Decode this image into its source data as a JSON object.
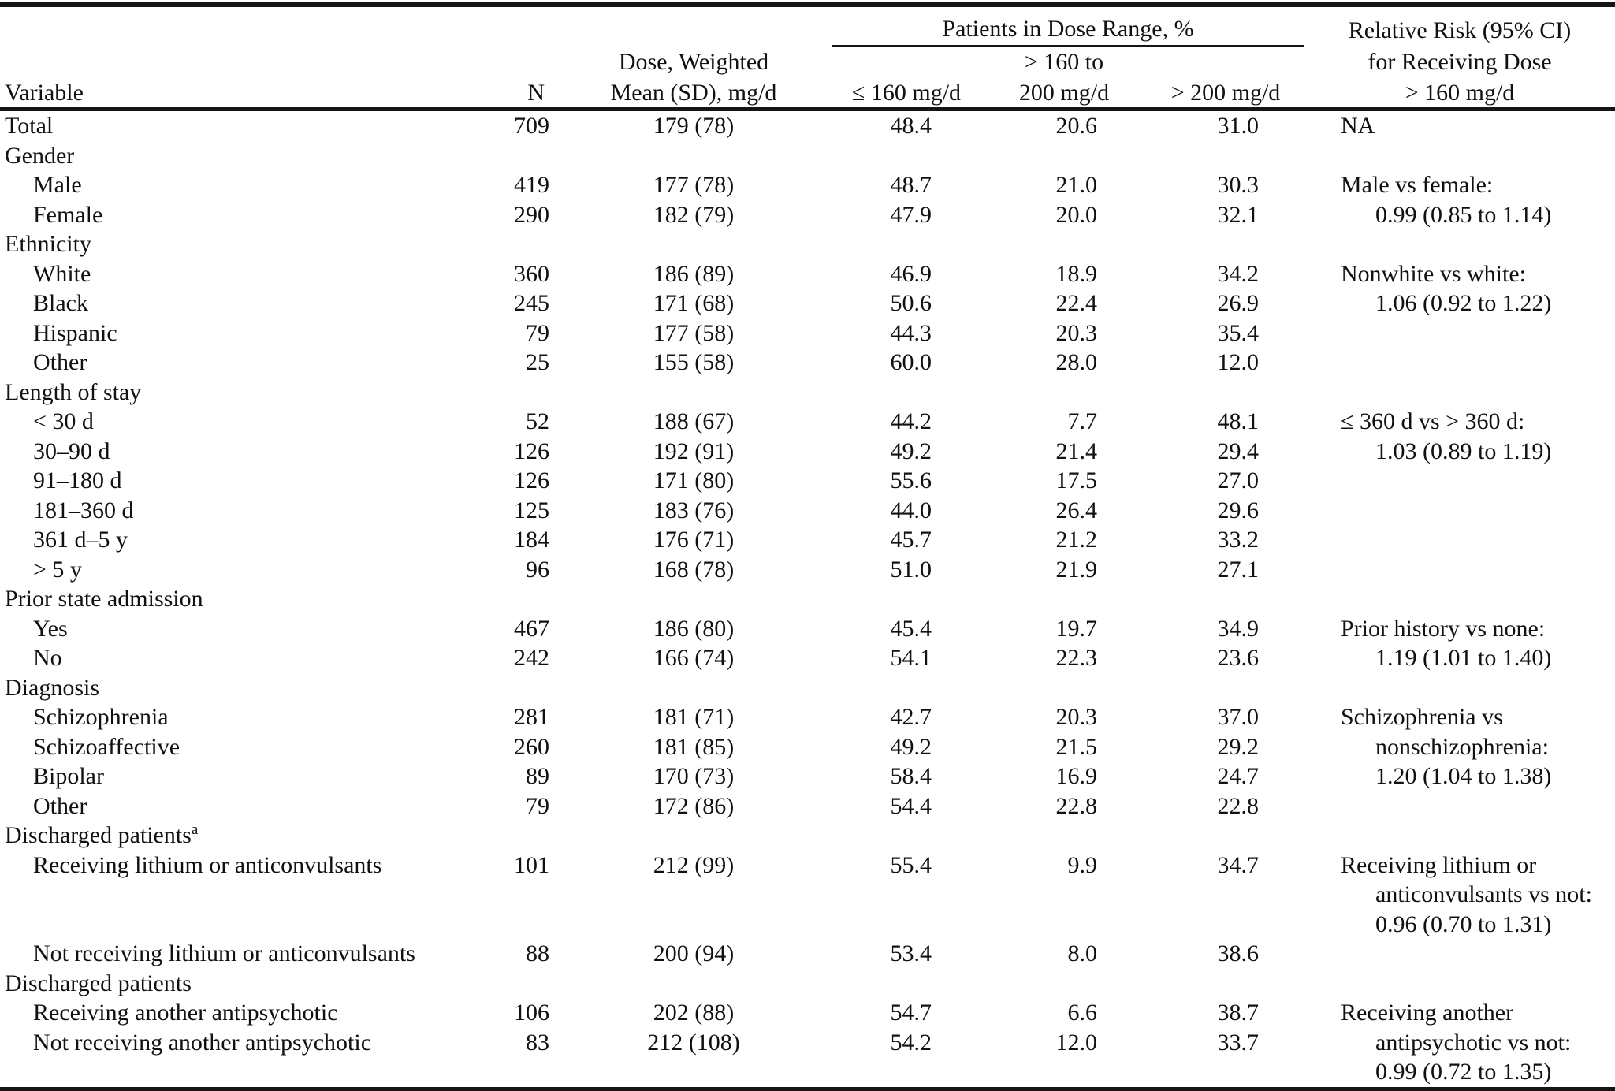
{
  "table": {
    "header": {
      "variable": "Variable",
      "n": "N",
      "dose_line1": "Dose, Weighted",
      "dose_line2": "Mean (SD), mg/d",
      "spanner": "Patients in Dose Range, %",
      "col_le160": "≤ 160 mg/d",
      "col_mid_line1": "> 160 to",
      "col_mid_line2": "200 mg/d",
      "col_gt200": "> 200 mg/d",
      "rr_line1": "Relative Risk (95% CI)",
      "rr_line2": "for Receiving Dose",
      "rr_line3": "> 160 mg/d"
    },
    "rows": [
      {
        "type": "data",
        "indent": 0,
        "label": "Total",
        "n": "709",
        "dose": "179 (78)",
        "p1": "48.4",
        "p2": "20.6",
        "p3": "31.0",
        "rr": [
          {
            "text": "NA",
            "indent": 0
          }
        ]
      },
      {
        "type": "group",
        "label": "Gender"
      },
      {
        "type": "data",
        "indent": 1,
        "label": "Male",
        "n": "419",
        "dose": "177 (78)",
        "p1": "48.7",
        "p2": "21.0",
        "p3": "30.3",
        "rr": [
          {
            "text": "Male vs female:",
            "indent": 0
          }
        ]
      },
      {
        "type": "data",
        "indent": 1,
        "label": "Female",
        "n": "290",
        "dose": "182 (79)",
        "p1": "47.9",
        "p2": "20.0",
        "p3": "32.1",
        "rr": [
          {
            "text": "0.99 (0.85 to 1.14)",
            "indent": 1
          }
        ]
      },
      {
        "type": "group",
        "label": "Ethnicity"
      },
      {
        "type": "data",
        "indent": 1,
        "label": "White",
        "n": "360",
        "dose": "186 (89)",
        "p1": "46.9",
        "p2": "18.9",
        "p3": "34.2",
        "rr": [
          {
            "text": "Nonwhite vs white:",
            "indent": 0
          }
        ]
      },
      {
        "type": "data",
        "indent": 1,
        "label": "Black",
        "n": "245",
        "dose": "171 (68)",
        "p1": "50.6",
        "p2": "22.4",
        "p3": "26.9",
        "rr": [
          {
            "text": "1.06 (0.92 to 1.22)",
            "indent": 1
          }
        ]
      },
      {
        "type": "data",
        "indent": 1,
        "label": "Hispanic",
        "n": "79",
        "dose": "177 (58)",
        "p1": "44.3",
        "p2": "20.3",
        "p3": "35.4",
        "rr": []
      },
      {
        "type": "data",
        "indent": 1,
        "label": "Other",
        "n": "25",
        "dose": "155 (58)",
        "p1": "60.0",
        "p2": "28.0",
        "p3": "12.0",
        "rr": []
      },
      {
        "type": "group",
        "label": "Length of stay"
      },
      {
        "type": "data",
        "indent": 1,
        "label": "< 30 d",
        "n": "52",
        "dose": "188 (67)",
        "p1": "44.2",
        "p2": "7.7",
        "p3": "48.1",
        "rr": [
          {
            "text": "≤ 360 d vs > 360 d:",
            "indent": 0
          }
        ]
      },
      {
        "type": "data",
        "indent": 1,
        "label": "30–90 d",
        "n": "126",
        "dose": "192 (91)",
        "p1": "49.2",
        "p2": "21.4",
        "p3": "29.4",
        "rr": [
          {
            "text": "1.03 (0.89 to 1.19)",
            "indent": 1
          }
        ]
      },
      {
        "type": "data",
        "indent": 1,
        "label": "91–180 d",
        "n": "126",
        "dose": "171 (80)",
        "p1": "55.6",
        "p2": "17.5",
        "p3": "27.0",
        "rr": []
      },
      {
        "type": "data",
        "indent": 1,
        "label": "181–360 d",
        "n": "125",
        "dose": "183 (76)",
        "p1": "44.0",
        "p2": "26.4",
        "p3": "29.6",
        "rr": []
      },
      {
        "type": "data",
        "indent": 1,
        "label": "361 d–5 y",
        "n": "184",
        "dose": "176 (71)",
        "p1": "45.7",
        "p2": "21.2",
        "p3": "33.2",
        "rr": []
      },
      {
        "type": "data",
        "indent": 1,
        "label": "> 5 y",
        "n": "96",
        "dose": "168 (78)",
        "p1": "51.0",
        "p2": "21.9",
        "p3": "27.1",
        "rr": []
      },
      {
        "type": "group",
        "label": "Prior state admission"
      },
      {
        "type": "data",
        "indent": 1,
        "label": "Yes",
        "n": "467",
        "dose": "186 (80)",
        "p1": "45.4",
        "p2": "19.7",
        "p3": "34.9",
        "rr": [
          {
            "text": "Prior history vs none:",
            "indent": 0
          }
        ]
      },
      {
        "type": "data",
        "indent": 1,
        "label": "No",
        "n": "242",
        "dose": "166 (74)",
        "p1": "54.1",
        "p2": "22.3",
        "p3": "23.6",
        "rr": [
          {
            "text": "1.19 (1.01 to 1.40)",
            "indent": 1
          }
        ]
      },
      {
        "type": "group",
        "label": "Diagnosis"
      },
      {
        "type": "data",
        "indent": 1,
        "label": "Schizophrenia",
        "n": "281",
        "dose": "181 (71)",
        "p1": "42.7",
        "p2": "20.3",
        "p3": "37.0",
        "rr": [
          {
            "text": "Schizophrenia vs",
            "indent": 0
          }
        ]
      },
      {
        "type": "data",
        "indent": 1,
        "label": "Schizoaffective",
        "n": "260",
        "dose": "181 (85)",
        "p1": "49.2",
        "p2": "21.5",
        "p3": "29.2",
        "rr": [
          {
            "text": "nonschizophrenia:",
            "indent": 1
          }
        ]
      },
      {
        "type": "data",
        "indent": 1,
        "label": "Bipolar",
        "n": "89",
        "dose": "170 (73)",
        "p1": "58.4",
        "p2": "16.9",
        "p3": "24.7",
        "rr": [
          {
            "text": "1.20 (1.04 to 1.38)",
            "indent": 1
          }
        ]
      },
      {
        "type": "data",
        "indent": 1,
        "label": "Other",
        "n": "79",
        "dose": "172 (86)",
        "p1": "54.4",
        "p2": "22.8",
        "p3": "22.8",
        "rr": []
      },
      {
        "type": "group",
        "label": "Discharged patients",
        "sup": "a"
      },
      {
        "type": "data",
        "indent": 1,
        "label": "Receiving lithium or anticonvulsants",
        "n": "101",
        "dose": "212 (99)",
        "p1": "55.4",
        "p2": "9.9",
        "p3": "34.7",
        "rr": [
          {
            "text": "Receiving lithium or",
            "indent": 0
          },
          {
            "text": "anticonvulsants vs not:",
            "indent": 1
          },
          {
            "text": "0.96 (0.70 to 1.31)",
            "indent": 1
          }
        ]
      },
      {
        "type": "data",
        "indent": 1,
        "label": "Not receiving lithium or anticonvulsants",
        "n": "88",
        "dose": "200 (94)",
        "p1": "53.4",
        "p2": "8.0",
        "p3": "38.6",
        "rr": []
      },
      {
        "type": "group",
        "label": "Discharged patients"
      },
      {
        "type": "data",
        "indent": 1,
        "label": "Receiving another antipsychotic",
        "n": "106",
        "dose": "202 (88)",
        "p1": "54.7",
        "p2": "6.6",
        "p3": "38.7",
        "rr": [
          {
            "text": "Receiving another",
            "indent": 0
          }
        ]
      },
      {
        "type": "data",
        "indent": 1,
        "label": "Not receiving another antipsychotic",
        "n": "83",
        "dose": "212 (108)",
        "p1": "54.2",
        "p2": "12.0",
        "p3": "33.7",
        "rr": [
          {
            "text": "antipsychotic vs not:",
            "indent": 1
          },
          {
            "text": "0.99 (0.72 to 1.35)",
            "indent": 1
          }
        ]
      }
    ]
  }
}
